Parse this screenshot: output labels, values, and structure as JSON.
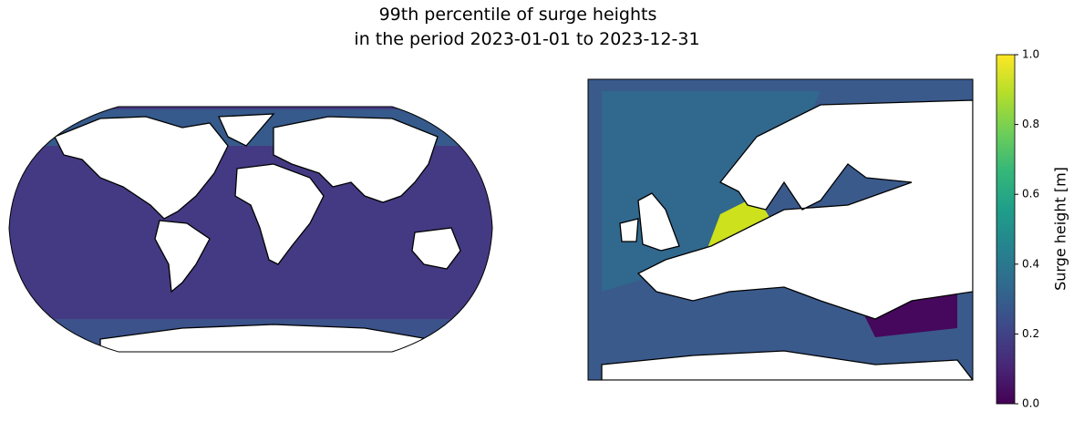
{
  "title": [
    "99th percentile of surge heights",
    "in the period 2023-01-01 to 2023-12-31"
  ],
  "colorbar": {
    "label": "Surge height [m]",
    "lim": [
      0,
      1
    ],
    "ticks": [
      {
        "value": 0,
        "label": "0.0"
      },
      0.2,
      0.4,
      0.6,
      0.8,
      {
        "value": 1,
        "label": "1.0"
      }
    ],
    "colormap": "viridis"
  }
}
